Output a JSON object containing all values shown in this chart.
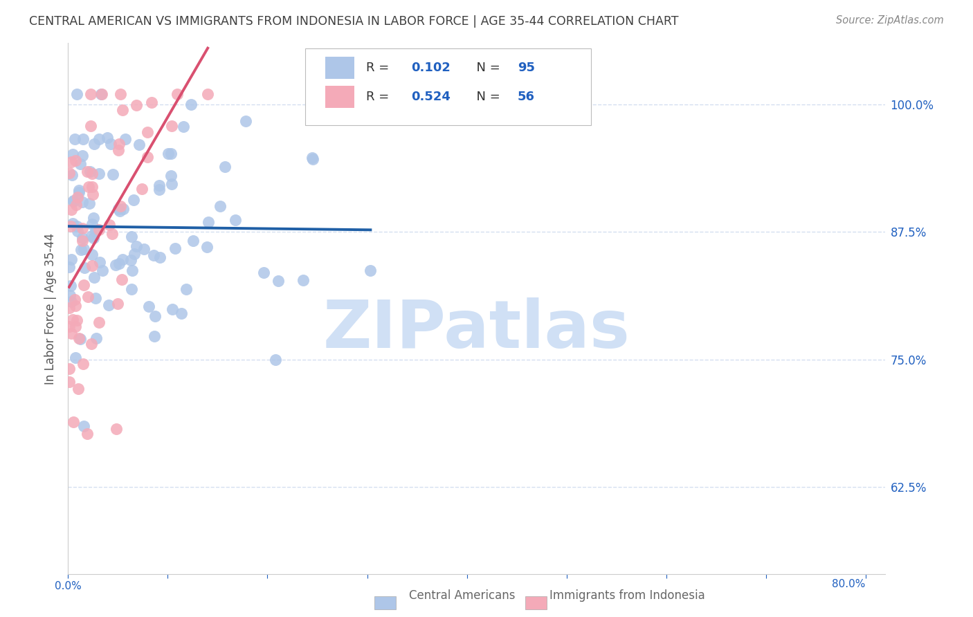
{
  "title": "CENTRAL AMERICAN VS IMMIGRANTS FROM INDONESIA IN LABOR FORCE | AGE 35-44 CORRELATION CHART",
  "source": "Source: ZipAtlas.com",
  "ylabel": "In Labor Force | Age 35-44",
  "y_ticks": [
    0.625,
    0.75,
    0.875,
    1.0
  ],
  "y_tick_labels": [
    "62.5%",
    "75.0%",
    "87.5%",
    "100.0%"
  ],
  "x_range": [
    0.0,
    0.82
  ],
  "y_range": [
    0.54,
    1.06
  ],
  "blue_color": "#aec6e8",
  "blue_line_color": "#1f5fa6",
  "pink_color": "#f4aab8",
  "pink_line_color": "#d95070",
  "blue_r": 0.102,
  "blue_n": 95,
  "pink_r": 0.524,
  "pink_n": 56,
  "watermark": "ZIPatlas",
  "watermark_color": "#d0e0f5",
  "title_color": "#404040",
  "axis_label_color": "#2060c0",
  "grid_color": "#d4dff0",
  "background_color": "#ffffff",
  "legend_label_color": "#2060c0",
  "bottom_legend_color": "#666666"
}
